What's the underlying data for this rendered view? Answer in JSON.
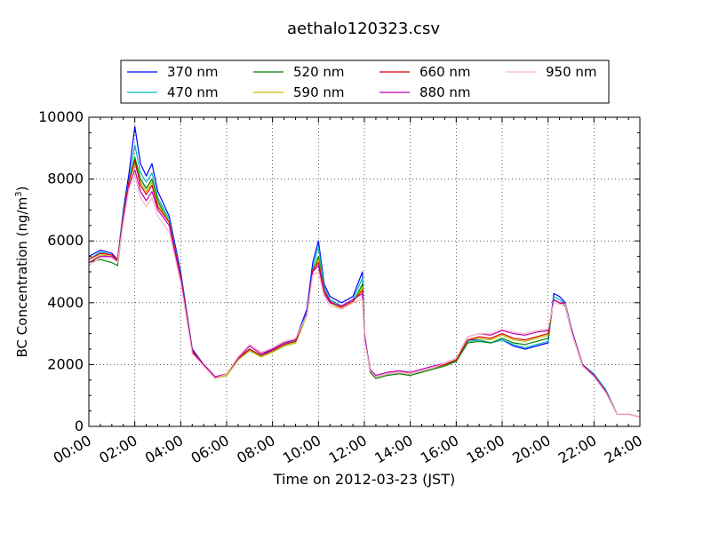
{
  "chart_data": {
    "type": "line",
    "title": "aethalo120323.csv",
    "xlabel": "Time on 2012-03-23 (JST)",
    "ylabel_main": "BC Concentration (ng/m",
    "ylabel_sup": "3",
    "ylabel_close": ")",
    "xlim": [
      "00:00",
      "24:00"
    ],
    "ylim": [
      0,
      10000
    ],
    "x_ticks": [
      "00:00",
      "02:00",
      "04:00",
      "06:00",
      "08:00",
      "10:00",
      "12:00",
      "14:00",
      "16:00",
      "18:00",
      "20:00",
      "22:00",
      "24:00"
    ],
    "y_ticks": [
      "0",
      "2000",
      "4000",
      "6000",
      "8000",
      "10000"
    ],
    "grid": true,
    "legend_position": "top-center",
    "x": [
      "00:00",
      "00:30",
      "01:00",
      "01:15",
      "01:30",
      "01:45",
      "02:00",
      "02:15",
      "02:30",
      "02:45",
      "03:00",
      "03:30",
      "04:00",
      "04:30",
      "05:00",
      "05:30",
      "06:00",
      "06:30",
      "07:00",
      "07:30",
      "08:00",
      "08:30",
      "09:00",
      "09:30",
      "09:45",
      "10:00",
      "10:15",
      "10:30",
      "11:00",
      "11:30",
      "11:55",
      "12:00",
      "12:15",
      "12:30",
      "13:00",
      "13:30",
      "14:00",
      "14:30",
      "15:00",
      "15:30",
      "16:00",
      "16:30",
      "17:00",
      "17:30",
      "18:00",
      "18:30",
      "19:00",
      "19:30",
      "20:00",
      "20:15",
      "20:30",
      "20:45",
      "21:00",
      "21:30",
      "22:00",
      "22:30",
      "23:00",
      "23:30",
      "24:00"
    ],
    "series": [
      {
        "name": "370 nm",
        "color": "#0000ff",
        "values": [
          5500,
          5700,
          5600,
          5400,
          7000,
          8200,
          9700,
          8500,
          8100,
          8500,
          7600,
          6800,
          5000,
          2500,
          2000,
          1600,
          1700,
          2200,
          2500,
          2300,
          2500,
          2700,
          2800,
          3800,
          5300,
          6000,
          4600,
          4200,
          4000,
          4200,
          5000,
          3000,
          1800,
          1600,
          1700,
          1750,
          1700,
          1800,
          1900,
          2000,
          2100,
          2800,
          2800,
          2700,
          2800,
          2600,
          2500,
          2600,
          2700,
          4300,
          4200,
          4000,
          3200,
          2000,
          1700,
          1200,
          400,
          400,
          300
        ]
      },
      {
        "name": "470 nm",
        "color": "#00bbbb",
        "values": [
          5400,
          5650,
          5550,
          5400,
          6900,
          8000,
          9100,
          8200,
          7900,
          8200,
          7400,
          6700,
          4900,
          2450,
          2000,
          1600,
          1700,
          2200,
          2500,
          2300,
          2450,
          2650,
          2800,
          3700,
          5100,
          5800,
          4500,
          4100,
          3900,
          4100,
          4800,
          2950,
          1800,
          1600,
          1700,
          1750,
          1700,
          1800,
          1900,
          2000,
          2100,
          2750,
          2800,
          2700,
          2800,
          2650,
          2550,
          2650,
          2750,
          4200,
          4100,
          3950,
          3150,
          2000,
          1700,
          1200,
          400,
          400,
          300
        ]
      },
      {
        "name": "520 nm",
        "color": "#008000",
        "values": [
          5300,
          5400,
          5300,
          5200,
          6700,
          7900,
          8700,
          8000,
          7700,
          8000,
          7300,
          6600,
          4800,
          2400,
          1950,
          1550,
          1650,
          2150,
          2450,
          2250,
          2400,
          2600,
          2700,
          3600,
          5000,
          5500,
          4400,
          4000,
          3800,
          4000,
          4600,
          2900,
          1750,
          1550,
          1650,
          1700,
          1650,
          1750,
          1850,
          1950,
          2100,
          2700,
          2750,
          2700,
          2850,
          2700,
          2650,
          2750,
          2850,
          4100,
          4000,
          3900,
          3100,
          1950,
          1650,
          1150,
          400,
          400,
          300
        ]
      },
      {
        "name": "590 nm",
        "color": "#bbbb00",
        "values": [
          5300,
          5550,
          5500,
          5350,
          6800,
          7900,
          8500,
          7900,
          7600,
          7900,
          7200,
          6600,
          4800,
          2400,
          1950,
          1550,
          1650,
          2150,
          2450,
          2250,
          2400,
          2600,
          2700,
          3600,
          5000,
          5400,
          4400,
          4000,
          3800,
          4000,
          4500,
          2900,
          1800,
          1600,
          1700,
          1750,
          1700,
          1800,
          1900,
          2000,
          2150,
          2800,
          2850,
          2800,
          2950,
          2800,
          2750,
          2850,
          2950,
          4100,
          4000,
          3950,
          3150,
          2000,
          1650,
          1150,
          400,
          400,
          300
        ]
      },
      {
        "name": "660 nm",
        "color": "#dd0000",
        "values": [
          5400,
          5600,
          5550,
          5400,
          6800,
          7950,
          8600,
          7800,
          7500,
          7800,
          7100,
          6600,
          4850,
          2450,
          2000,
          1600,
          1700,
          2200,
          2500,
          2300,
          2450,
          2650,
          2750,
          3650,
          5050,
          5300,
          4400,
          4050,
          3850,
          4050,
          4400,
          2900,
          1800,
          1600,
          1700,
          1750,
          1700,
          1800,
          1900,
          2000,
          2150,
          2800,
          2900,
          2850,
          3000,
          2850,
          2800,
          2900,
          3000,
          4100,
          4000,
          3950,
          3150,
          2000,
          1650,
          1150,
          400,
          400,
          300
        ]
      },
      {
        "name": "880 nm",
        "color": "#bb00bb",
        "values": [
          5300,
          5500,
          5500,
          5350,
          6700,
          7800,
          8300,
          7600,
          7300,
          7600,
          7000,
          6500,
          4750,
          2400,
          2000,
          1600,
          1700,
          2200,
          2600,
          2350,
          2500,
          2700,
          2800,
          3650,
          5000,
          5200,
          4300,
          4000,
          3900,
          4100,
          4300,
          2900,
          1850,
          1650,
          1750,
          1800,
          1750,
          1850,
          1950,
          2050,
          2200,
          2900,
          3000,
          2950,
          3100,
          3000,
          2950,
          3050,
          3100,
          4100,
          4000,
          4000,
          3150,
          2000,
          1650,
          1150,
          400,
          400,
          300
        ]
      },
      {
        "name": "950 nm",
        "color": "#ffb6c1",
        "values": [
          5200,
          5450,
          5450,
          5300,
          6600,
          7700,
          8100,
          7400,
          7100,
          7400,
          6800,
          6300,
          4650,
          2350,
          1950,
          1550,
          1700,
          2250,
          2650,
          2400,
          2550,
          2750,
          2850,
          3600,
          4900,
          5000,
          4200,
          3900,
          3800,
          4000,
          4100,
          2800,
          1800,
          1600,
          1700,
          1750,
          1700,
          1800,
          1900,
          2050,
          2200,
          2900,
          3000,
          3000,
          3150,
          3050,
          3000,
          3100,
          3150,
          4000,
          3950,
          3950,
          3100,
          1950,
          1600,
          1100,
          400,
          400,
          300
        ]
      }
    ]
  }
}
